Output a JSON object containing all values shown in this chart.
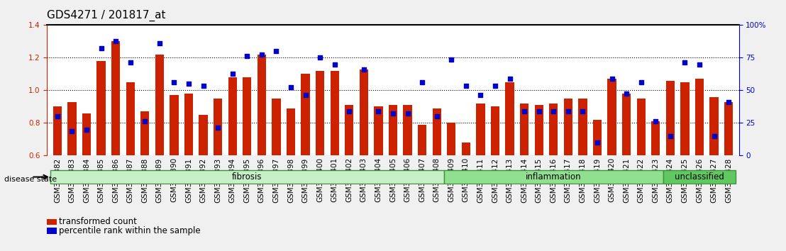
{
  "title": "GDS4271 / 201817_at",
  "categories": [
    "GSM380382",
    "GSM380383",
    "GSM380384",
    "GSM380385",
    "GSM380386",
    "GSM380387",
    "GSM380388",
    "GSM380389",
    "GSM380390",
    "GSM380391",
    "GSM380392",
    "GSM380393",
    "GSM380394",
    "GSM380395",
    "GSM380396",
    "GSM380397",
    "GSM380398",
    "GSM380399",
    "GSM380400",
    "GSM380401",
    "GSM380402",
    "GSM380403",
    "GSM380404",
    "GSM380405",
    "GSM380406",
    "GSM380407",
    "GSM380408",
    "GSM380409",
    "GSM380410",
    "GSM380411",
    "GSM380412",
    "GSM380413",
    "GSM380414",
    "GSM380415",
    "GSM380416",
    "GSM380417",
    "GSM380418",
    "GSM380419",
    "GSM380420",
    "GSM380421",
    "GSM380422",
    "GSM380423",
    "GSM380424",
    "GSM380425",
    "GSM380426",
    "GSM380427",
    "GSM380428"
  ],
  "bar_values": [
    0.9,
    0.93,
    0.86,
    1.18,
    1.3,
    1.05,
    0.87,
    1.22,
    0.97,
    0.98,
    0.85,
    0.95,
    1.08,
    1.08,
    1.22,
    0.95,
    0.89,
    1.1,
    1.12,
    1.12,
    0.91,
    1.13,
    0.9,
    0.91,
    0.91,
    0.79,
    0.89,
    0.8,
    0.68,
    0.92,
    0.9,
    1.05,
    0.92,
    0.91,
    0.92,
    0.95,
    0.95,
    0.82,
    1.07,
    0.98,
    0.95,
    0.81,
    1.06,
    1.05,
    1.07,
    0.96,
    0.93
  ],
  "dot_values": [
    0.84,
    0.75,
    0.76,
    1.26,
    1.3,
    1.17,
    0.81,
    1.29,
    1.05,
    1.04,
    1.03,
    0.77,
    1.1,
    1.21,
    1.22,
    1.24,
    1.02,
    0.97,
    1.2,
    1.16,
    0.87,
    1.13,
    0.87,
    0.86,
    0.86,
    1.05,
    0.84,
    1.19,
    1.03,
    0.97,
    1.03,
    1.07,
    0.87,
    0.87,
    0.87,
    0.87,
    0.87,
    0.68,
    1.07,
    0.98,
    1.05,
    0.81,
    0.72,
    1.17,
    1.16,
    0.72,
    0.93
  ],
  "groups": [
    {
      "label": "fibrosis",
      "start": 0,
      "end": 27,
      "color": "#c8f0c8"
    },
    {
      "label": "inflammation",
      "start": 27,
      "end": 42,
      "color": "#90e090"
    },
    {
      "label": "unclassified",
      "start": 42,
      "end": 47,
      "color": "#60c860"
    }
  ],
  "bar_color": "#cc2200",
  "dot_color": "#0000cc",
  "ylim": [
    0.6,
    1.4
  ],
  "yticks": [
    0.6,
    0.8,
    1.0,
    1.2,
    1.4
  ],
  "right_yticks": [
    0,
    25,
    50,
    75,
    100
  ],
  "right_ylim": [
    0,
    100
  ],
  "right_yticklabels": [
    "0",
    "25",
    "50",
    "75",
    "100%"
  ],
  "background_color": "#f0f0f0",
  "plot_bg": "#ffffff",
  "grid_color": "#000000",
  "title_fontsize": 11,
  "tick_fontsize": 7.5,
  "legend_items": [
    "transformed count",
    "percentile rank within the sample"
  ],
  "disease_state_label": "disease state"
}
